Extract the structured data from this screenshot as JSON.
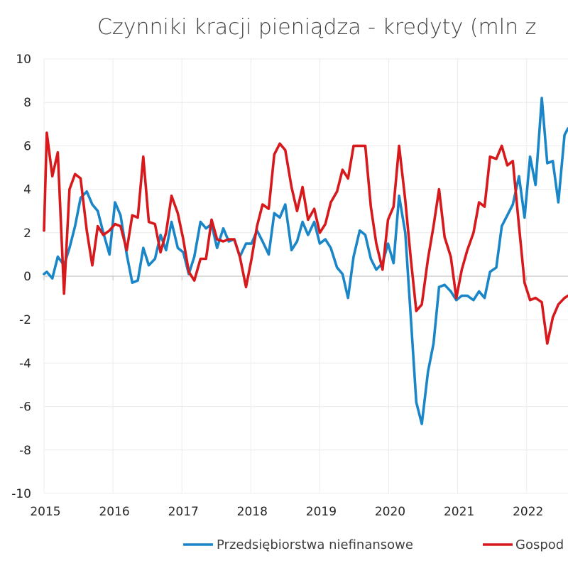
{
  "chart_data": {
    "type": "line",
    "title": "Czynniki kracji pieniądza - kredyty (mln z",
    "xlabel": "",
    "ylabel": "",
    "xlim": [
      2015.0,
      2022.6
    ],
    "ylim": [
      -10,
      10
    ],
    "y_ticks": [
      10,
      8,
      6,
      4,
      2,
      0,
      -2,
      -4,
      -6,
      -8,
      -10
    ],
    "y_tick_labels": [
      "10",
      "8",
      "6",
      "4",
      "2",
      "0",
      "-2",
      "-4",
      "-6",
      "-8",
      "-10"
    ],
    "x_ticks": [
      2015,
      2016,
      2017,
      2018,
      2019,
      2020,
      2021,
      2022
    ],
    "x_tick_labels": [
      "2015",
      "2016",
      "2017",
      "2018",
      "2019",
      "2020",
      "2021",
      "2022"
    ],
    "grid": true,
    "legend_position": "bottom",
    "series": [
      {
        "name": "Przedsiębiorstwa niefinansowe",
        "color": "#1a86c8",
        "x": [
          2015.0,
          2015.04,
          2015.12,
          2015.2,
          2015.29,
          2015.37,
          2015.45,
          2015.53,
          2015.62,
          2015.7,
          2015.78,
          2015.86,
          2015.95,
          2016.03,
          2016.11,
          2016.2,
          2016.28,
          2016.36,
          2016.44,
          2016.52,
          2016.61,
          2016.69,
          2016.77,
          2016.85,
          2016.94,
          2017.02,
          2017.1,
          2017.18,
          2017.27,
          2017.35,
          2017.43,
          2017.51,
          2017.6,
          2017.68,
          2017.76,
          2017.84,
          2017.93,
          2018.01,
          2018.09,
          2018.17,
          2018.26,
          2018.34,
          2018.42,
          2018.5,
          2018.59,
          2018.67,
          2018.75,
          2018.83,
          2018.92,
          2019.0,
          2019.08,
          2019.16,
          2019.25,
          2019.33,
          2019.41,
          2019.49,
          2019.58,
          2019.66,
          2019.74,
          2019.82,
          2019.91,
          2019.99,
          2020.07,
          2020.15,
          2020.24,
          2020.32,
          2020.4,
          2020.48,
          2020.57,
          2020.65,
          2020.73,
          2020.81,
          2020.9,
          2020.98,
          2021.06,
          2021.14,
          2021.23,
          2021.31,
          2021.39,
          2021.47,
          2021.56,
          2021.64,
          2021.72,
          2021.8,
          2021.89,
          2021.97,
          2022.05,
          2022.13,
          2022.22,
          2022.3,
          2022.38,
          2022.46,
          2022.55,
          2022.6
        ],
        "values": [
          0.1,
          0.2,
          -0.1,
          0.9,
          0.5,
          1.3,
          2.3,
          3.6,
          3.9,
          3.3,
          3.0,
          2.0,
          1.0,
          3.4,
          2.8,
          1.0,
          -0.3,
          -0.2,
          1.3,
          0.5,
          0.8,
          1.9,
          1.2,
          2.5,
          1.3,
          1.1,
          0.1,
          0.9,
          2.5,
          2.2,
          2.4,
          1.3,
          2.2,
          1.6,
          1.7,
          0.9,
          1.5,
          1.5,
          2.1,
          1.6,
          1.0,
          2.9,
          2.7,
          3.3,
          1.2,
          1.6,
          2.5,
          1.9,
          2.5,
          1.5,
          1.7,
          1.3,
          0.4,
          0.1,
          -1.0,
          0.9,
          2.1,
          1.9,
          0.8,
          0.3,
          0.6,
          1.5,
          0.6,
          3.7,
          2.0,
          -1.9,
          -5.8,
          -6.8,
          -4.4,
          -3.1,
          -0.5,
          -0.4,
          -0.7,
          -1.1,
          -0.9,
          -0.9,
          -1.1,
          -0.7,
          -1.0,
          0.2,
          0.4,
          2.3,
          2.8,
          3.3,
          4.6,
          2.7,
          5.5,
          4.2,
          8.2,
          5.2,
          5.3,
          3.4,
          6.5,
          6.8
        ]
      },
      {
        "name": "Gospod",
        "color": "#d7191c",
        "x": [
          2015.0,
          2015.04,
          2015.12,
          2015.2,
          2015.29,
          2015.37,
          2015.45,
          2015.53,
          2015.62,
          2015.7,
          2015.78,
          2015.86,
          2015.95,
          2016.03,
          2016.11,
          2016.2,
          2016.28,
          2016.36,
          2016.44,
          2016.52,
          2016.61,
          2016.69,
          2016.77,
          2016.85,
          2016.94,
          2017.02,
          2017.1,
          2017.18,
          2017.27,
          2017.35,
          2017.43,
          2017.51,
          2017.6,
          2017.68,
          2017.76,
          2017.84,
          2017.93,
          2018.01,
          2018.09,
          2018.17,
          2018.26,
          2018.34,
          2018.42,
          2018.5,
          2018.59,
          2018.67,
          2018.75,
          2018.83,
          2018.92,
          2019.0,
          2019.08,
          2019.16,
          2019.25,
          2019.33,
          2019.41,
          2019.49,
          2019.58,
          2019.66,
          2019.74,
          2019.82,
          2019.91,
          2019.99,
          2020.07,
          2020.15,
          2020.24,
          2020.32,
          2020.4,
          2020.48,
          2020.57,
          2020.65,
          2020.73,
          2020.81,
          2020.9,
          2020.98,
          2021.06,
          2021.14,
          2021.23,
          2021.31,
          2021.39,
          2021.47,
          2021.56,
          2021.64,
          2021.72,
          2021.8,
          2021.89,
          2021.97,
          2022.05,
          2022.13,
          2022.22,
          2022.3,
          2022.38,
          2022.46,
          2022.55,
          2022.6
        ],
        "values": [
          2.1,
          6.6,
          4.6,
          5.7,
          -0.8,
          4.0,
          4.7,
          4.5,
          2.1,
          0.5,
          2.3,
          1.9,
          2.1,
          2.4,
          2.3,
          1.2,
          2.8,
          2.7,
          5.5,
          2.5,
          2.4,
          1.1,
          2.0,
          3.7,
          2.9,
          1.7,
          0.2,
          -0.2,
          0.8,
          0.8,
          2.6,
          1.7,
          1.6,
          1.7,
          1.7,
          0.9,
          -0.5,
          0.8,
          2.3,
          3.3,
          3.1,
          5.6,
          6.1,
          5.8,
          4.1,
          3.0,
          4.1,
          2.6,
          3.1,
          2.0,
          2.4,
          3.4,
          3.9,
          4.9,
          4.5,
          6.0,
          6.0,
          6.0,
          3.2,
          1.5,
          0.3,
          2.6,
          3.2,
          6.0,
          3.5,
          0.8,
          -1.6,
          -1.3,
          0.8,
          2.3,
          4.0,
          1.8,
          0.9,
          -1.0,
          0.3,
          1.2,
          2.0,
          3.4,
          3.2,
          5.5,
          5.4,
          6.0,
          5.1,
          5.3,
          2.3,
          -0.3,
          -1.1,
          -1.0,
          -1.2,
          -3.1,
          -1.9,
          -1.3,
          -1.0,
          -0.9
        ]
      }
    ]
  }
}
